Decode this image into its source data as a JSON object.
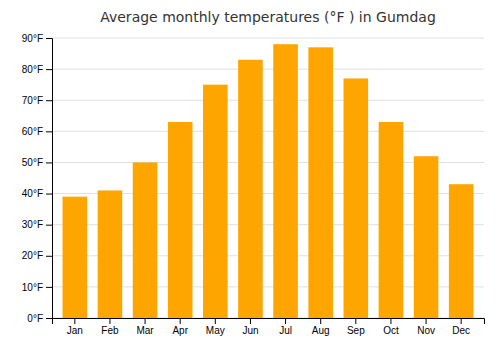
{
  "chart_data": {
    "type": "bar",
    "title": "Average monthly temperatures (°F ) in Gumdag",
    "categories": [
      "Jan",
      "Feb",
      "Mar",
      "Apr",
      "May",
      "Jun",
      "Jul",
      "Aug",
      "Sep",
      "Oct",
      "Nov",
      "Dec"
    ],
    "values": [
      39,
      41,
      50,
      63,
      75,
      83,
      88,
      87,
      77,
      63,
      52,
      43
    ],
    "color": "#FFA500",
    "ylim": [
      0,
      90
    ],
    "yticks": [
      {
        "value": 0,
        "label": "0°F"
      },
      {
        "value": 10,
        "label": "10°F"
      },
      {
        "value": 20,
        "label": "20°F"
      },
      {
        "value": 30,
        "label": "30°F"
      },
      {
        "value": 40,
        "label": "40°F"
      },
      {
        "value": 50,
        "label": "50°F"
      },
      {
        "value": 60,
        "label": "60°F"
      },
      {
        "value": 70,
        "label": "70°F"
      },
      {
        "value": 80,
        "label": "80°F"
      },
      {
        "value": 90,
        "label": "90°F"
      }
    ],
    "grid": true
  }
}
